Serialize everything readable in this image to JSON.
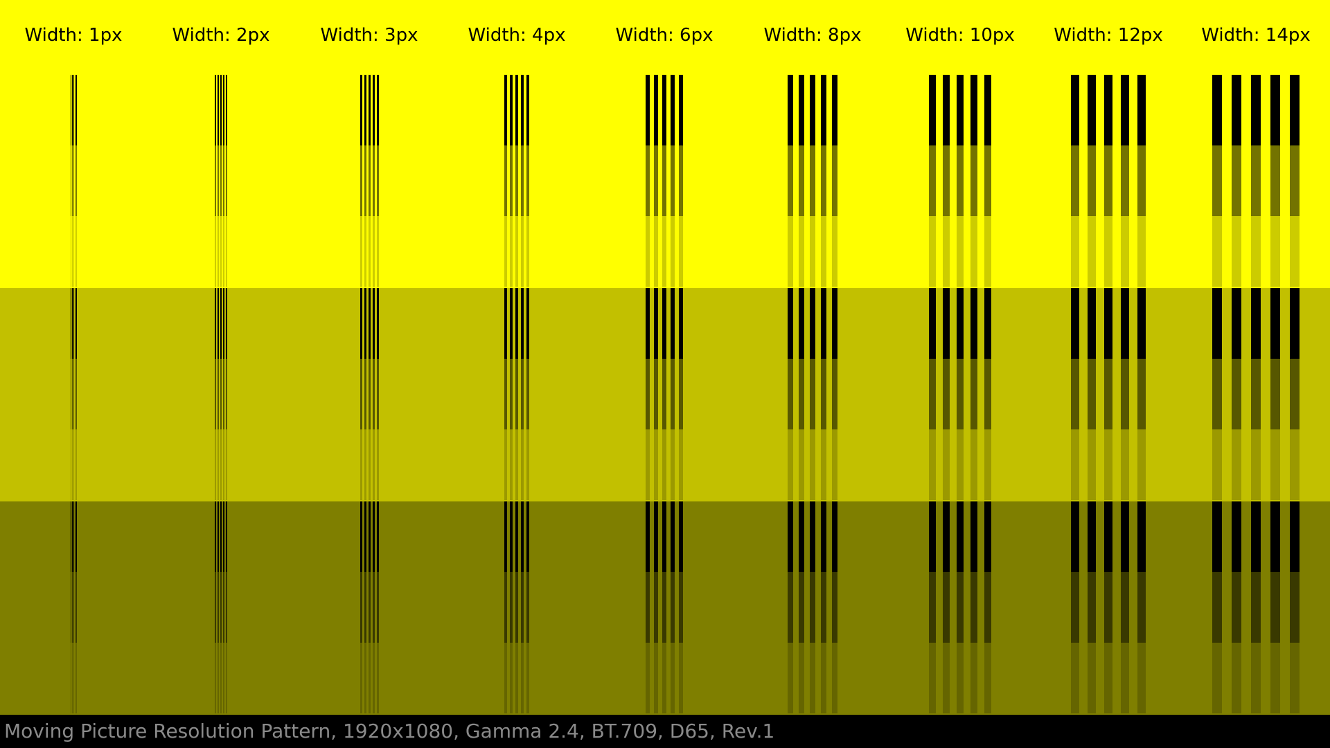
{
  "pattern": {
    "bands": [
      {
        "name": "band-100",
        "color": "#ffff00"
      },
      {
        "name": "band-75",
        "color": "#c2c000"
      },
      {
        "name": "band-50",
        "color": "#7f7f00"
      }
    ],
    "line_color": "#000000",
    "opacity_steps": [
      1.0,
      0.55,
      0.2
    ],
    "groups": [
      {
        "label": "Width: 1px",
        "line_width": 1
      },
      {
        "label": "Width: 2px",
        "line_width": 2
      },
      {
        "label": "Width: 3px",
        "line_width": 3
      },
      {
        "label": "Width: 4px",
        "line_width": 4
      },
      {
        "label": "Width: 6px",
        "line_width": 6
      },
      {
        "label": "Width: 8px",
        "line_width": 8
      },
      {
        "label": "Width: 10px",
        "line_width": 10
      },
      {
        "label": "Width: 12px",
        "line_width": 12
      },
      {
        "label": "Width: 14px",
        "line_width": 14
      }
    ],
    "lines_per_group": 5
  },
  "footer": {
    "text": "Moving Picture Resolution Pattern, 1920x1080, Gamma 2.4, BT.709, D65, Rev.1"
  }
}
